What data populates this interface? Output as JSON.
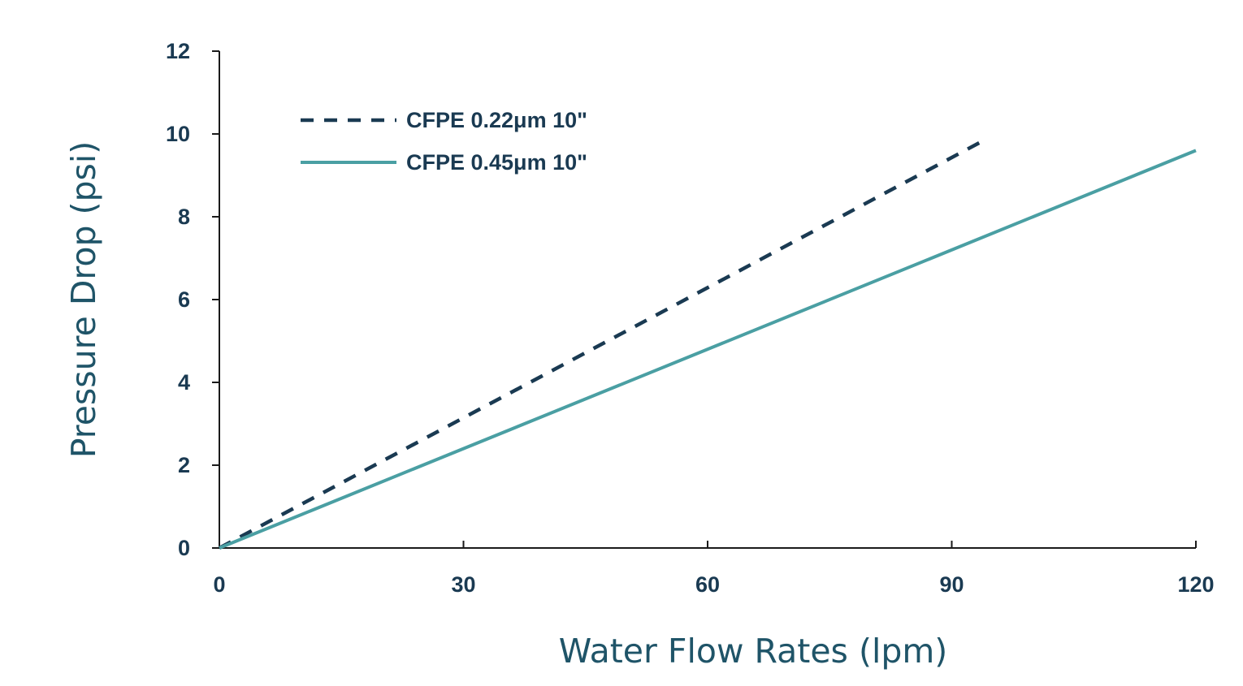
{
  "chart_data": {
    "type": "line",
    "title": "",
    "xlabel": "Water Flow Rates (lpm)",
    "ylabel": "Pressure Drop (psi)",
    "xlim": [
      0,
      120
    ],
    "ylim": [
      0,
      12
    ],
    "x_ticks": [
      "0",
      "30",
      "60",
      "90",
      "120"
    ],
    "y_ticks": [
      "0",
      "2",
      "4",
      "6",
      "8",
      "10",
      "12"
    ],
    "grid": false,
    "legend_position": "top-left",
    "series": [
      {
        "name": "CFPE 0.22μm 10\"",
        "line_style": "dashed",
        "color": "#1a3a52",
        "x": [
          0,
          94
        ],
        "y": [
          0,
          9.85
        ]
      },
      {
        "name": "CFPE 0.45μm 10\"",
        "line_style": "solid",
        "color": "#4a9fa3",
        "x": [
          0,
          120
        ],
        "y": [
          0,
          9.6
        ]
      }
    ]
  }
}
